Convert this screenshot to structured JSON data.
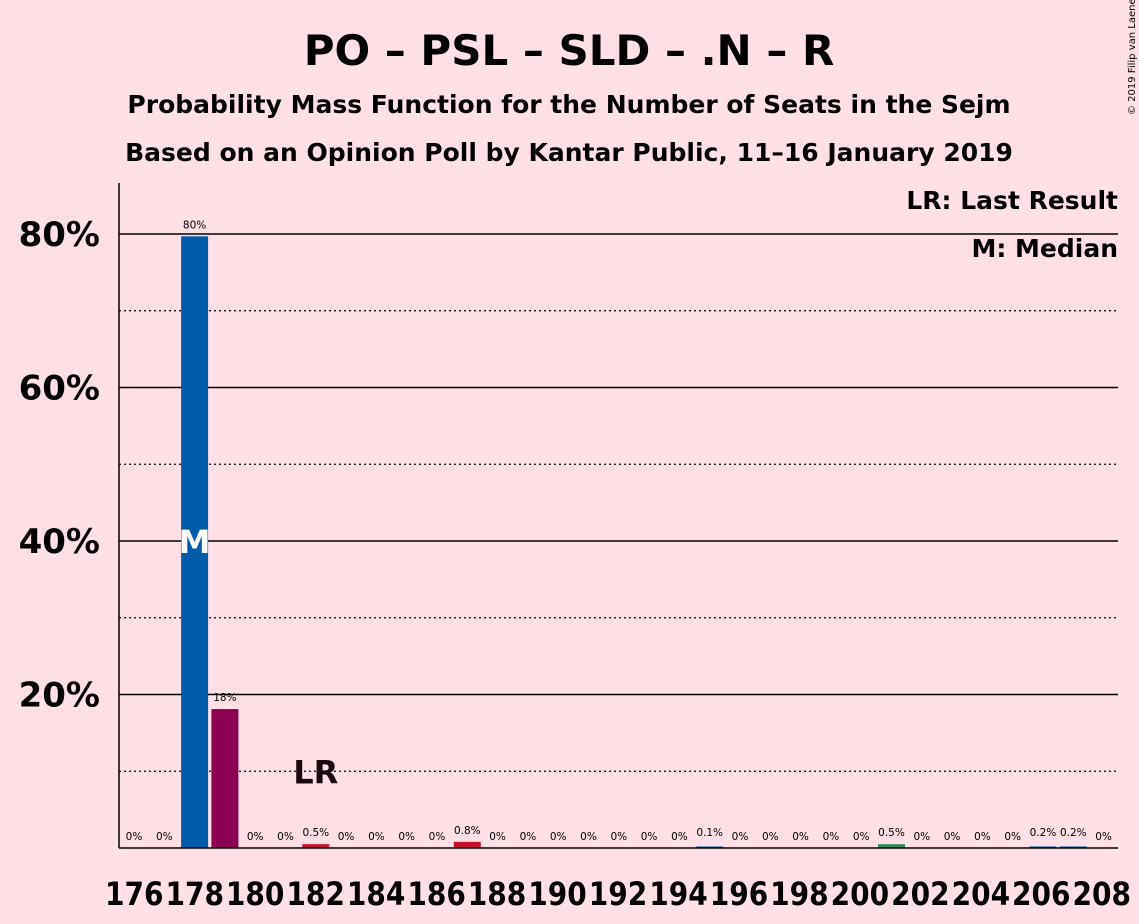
{
  "chart_data": {
    "type": "bar",
    "title": "PO – PSL – SLD – .N – R",
    "subtitle_1": "Probability Mass Function for the Number of Seats in the Sejm",
    "subtitle_2": "Based on an Opinion Poll by Kantar Public, 11–16 January 2019",
    "credit": "© 2019 Filip van Laenen",
    "legend": {
      "last_result": "LR: Last Result",
      "median": "M: Median",
      "placement": "top-right"
    },
    "ylim": [
      0,
      87
    ],
    "yticks": [
      {
        "value": 20,
        "label": "20%"
      },
      {
        "value": 40,
        "label": "40%"
      },
      {
        "value": 60,
        "label": "60%"
      },
      {
        "value": 80,
        "label": "80%"
      }
    ],
    "minor_gridlines": [
      10,
      30,
      50,
      70
    ],
    "categories": [
      176,
      177,
      178,
      179,
      180,
      181,
      182,
      183,
      184,
      185,
      186,
      187,
      188,
      189,
      190,
      191,
      192,
      193,
      194,
      195,
      196,
      197,
      198,
      199,
      200,
      201,
      202,
      203,
      204,
      205,
      206,
      207,
      208
    ],
    "x_tick_labels": [
      "176",
      "178",
      "180",
      "182",
      "184",
      "186",
      "188",
      "190",
      "192",
      "194",
      "196",
      "198",
      "200",
      "202",
      "204",
      "206",
      "208"
    ],
    "values": [
      0,
      0,
      79.7,
      18.1,
      0,
      0,
      0.5,
      0,
      0,
      0,
      0,
      0.8,
      0,
      0,
      0,
      0,
      0,
      0,
      0,
      0.1,
      0,
      0,
      0,
      0,
      0,
      0.5,
      0,
      0,
      0,
      0,
      0.2,
      0.2,
      0
    ],
    "labels": [
      "0%",
      "0%",
      "80%",
      "18%",
      "0%",
      "0%",
      "0.5%",
      "0%",
      "0%",
      "0%",
      "0%",
      "0.8%",
      "0%",
      "0%",
      "0%",
      "0%",
      "0%",
      "0%",
      "0%",
      "0.1%",
      "0%",
      "0%",
      "0%",
      "0%",
      "0%",
      "0.5%",
      "0%",
      "0%",
      "0%",
      "0%",
      "0.2%",
      "0.2%",
      "0%"
    ],
    "bar_colors": {
      "178": "#005ba8",
      "179": "#8b0050",
      "182": "#c8102e",
      "187": "#c8102e",
      "201": "#2e8b57"
    },
    "default_bar_color": "#005ba8",
    "median": {
      "seats": 178,
      "label": "M"
    },
    "last_result": {
      "seats": 182,
      "label": "LR"
    },
    "grid": true
  }
}
